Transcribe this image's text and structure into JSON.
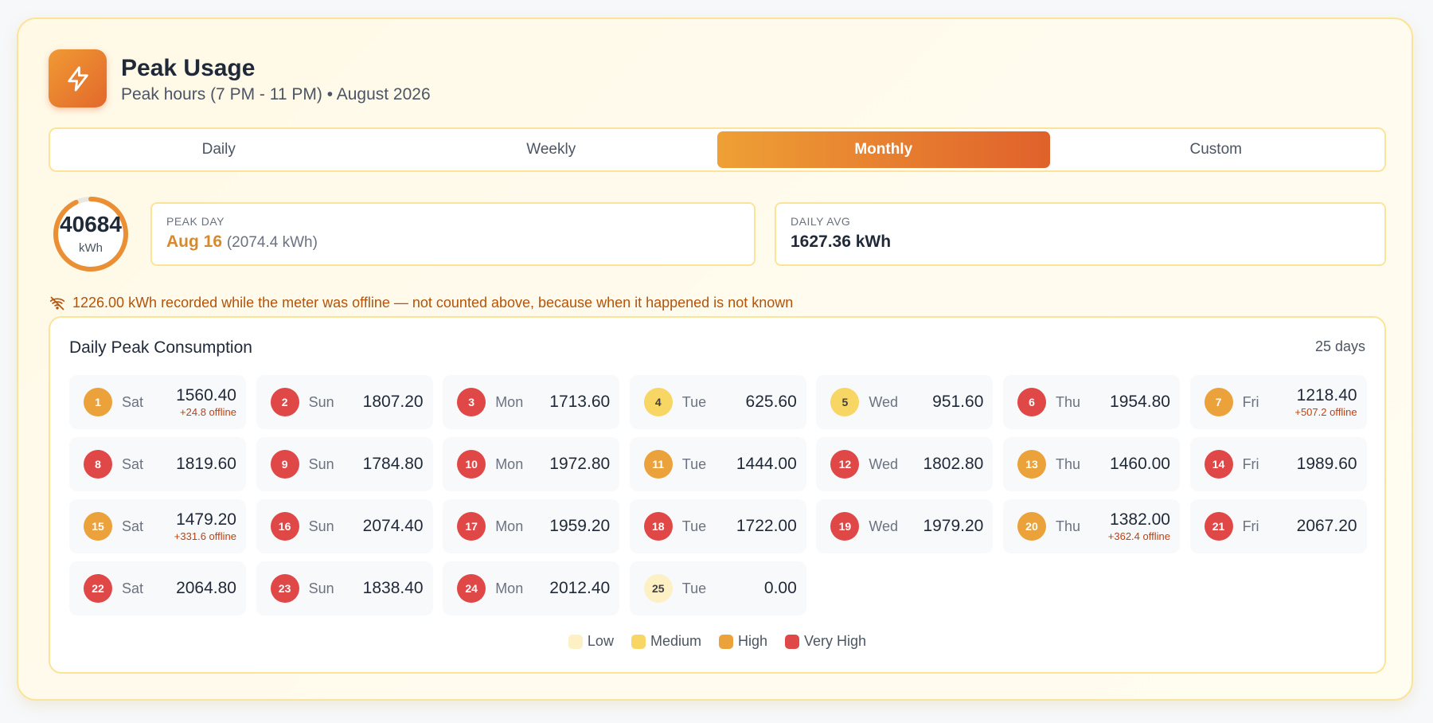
{
  "header": {
    "title": "Peak Usage",
    "subtitle": "Peak hours (7 PM - 11 PM) • August 2026",
    "icon": "lightning-bolt-icon"
  },
  "tabs": [
    "Daily",
    "Weekly",
    "Monthly",
    "Custom"
  ],
  "active_tab": "Monthly",
  "total": {
    "value": "40684",
    "unit": "kWh",
    "fraction": 0.93
  },
  "peak_day": {
    "label": "PEAK DAY",
    "date": "Aug 16",
    "detail": "(2074.4 kWh)"
  },
  "daily_avg": {
    "label": "DAILY AVG",
    "value": "1627.36 kWh"
  },
  "warning": "1226.00 kWh recorded while the meter was offline — not counted above, because when it happened is not known",
  "panel": {
    "title": "Daily Peak Consumption",
    "count": "25 days"
  },
  "days": [
    {
      "n": "1",
      "dow": "Sat",
      "value": "1560.40",
      "offline": "+24.8 offline",
      "level": "high"
    },
    {
      "n": "2",
      "dow": "Sun",
      "value": "1807.20",
      "offline": "",
      "level": "vhigh"
    },
    {
      "n": "3",
      "dow": "Mon",
      "value": "1713.60",
      "offline": "",
      "level": "vhigh"
    },
    {
      "n": "4",
      "dow": "Tue",
      "value": "625.60",
      "offline": "",
      "level": "med"
    },
    {
      "n": "5",
      "dow": "Wed",
      "value": "951.60",
      "offline": "",
      "level": "med"
    },
    {
      "n": "6",
      "dow": "Thu",
      "value": "1954.80",
      "offline": "",
      "level": "vhigh"
    },
    {
      "n": "7",
      "dow": "Fri",
      "value": "1218.40",
      "offline": "+507.2 offline",
      "level": "high"
    },
    {
      "n": "8",
      "dow": "Sat",
      "value": "1819.60",
      "offline": "",
      "level": "vhigh"
    },
    {
      "n": "9",
      "dow": "Sun",
      "value": "1784.80",
      "offline": "",
      "level": "vhigh"
    },
    {
      "n": "10",
      "dow": "Mon",
      "value": "1972.80",
      "offline": "",
      "level": "vhigh"
    },
    {
      "n": "11",
      "dow": "Tue",
      "value": "1444.00",
      "offline": "",
      "level": "high"
    },
    {
      "n": "12",
      "dow": "Wed",
      "value": "1802.80",
      "offline": "",
      "level": "vhigh"
    },
    {
      "n": "13",
      "dow": "Thu",
      "value": "1460.00",
      "offline": "",
      "level": "high"
    },
    {
      "n": "14",
      "dow": "Fri",
      "value": "1989.60",
      "offline": "",
      "level": "vhigh"
    },
    {
      "n": "15",
      "dow": "Sat",
      "value": "1479.20",
      "offline": "+331.6 offline",
      "level": "high"
    },
    {
      "n": "16",
      "dow": "Sun",
      "value": "2074.40",
      "offline": "",
      "level": "vhigh"
    },
    {
      "n": "17",
      "dow": "Mon",
      "value": "1959.20",
      "offline": "",
      "level": "vhigh"
    },
    {
      "n": "18",
      "dow": "Tue",
      "value": "1722.00",
      "offline": "",
      "level": "vhigh"
    },
    {
      "n": "19",
      "dow": "Wed",
      "value": "1979.20",
      "offline": "",
      "level": "vhigh"
    },
    {
      "n": "20",
      "dow": "Thu",
      "value": "1382.00",
      "offline": "+362.4 offline",
      "level": "high"
    },
    {
      "n": "21",
      "dow": "Fri",
      "value": "2067.20",
      "offline": "",
      "level": "vhigh"
    },
    {
      "n": "22",
      "dow": "Sat",
      "value": "2064.80",
      "offline": "",
      "level": "vhigh"
    },
    {
      "n": "23",
      "dow": "Sun",
      "value": "1838.40",
      "offline": "",
      "level": "vhigh"
    },
    {
      "n": "24",
      "dow": "Mon",
      "value": "2012.40",
      "offline": "",
      "level": "vhigh"
    },
    {
      "n": "25",
      "dow": "Tue",
      "value": "0.00",
      "offline": "",
      "level": "low"
    }
  ],
  "legend": [
    {
      "label": "Low",
      "color": "#fdf0c4"
    },
    {
      "label": "Medium",
      "color": "#f8d664"
    },
    {
      "label": "High",
      "color": "#eba23a"
    },
    {
      "label": "Very High",
      "color": "#e04848"
    }
  ],
  "colors": {
    "accent": "#e8842f",
    "border": "#fbe49a",
    "warning": "#b45309"
  }
}
